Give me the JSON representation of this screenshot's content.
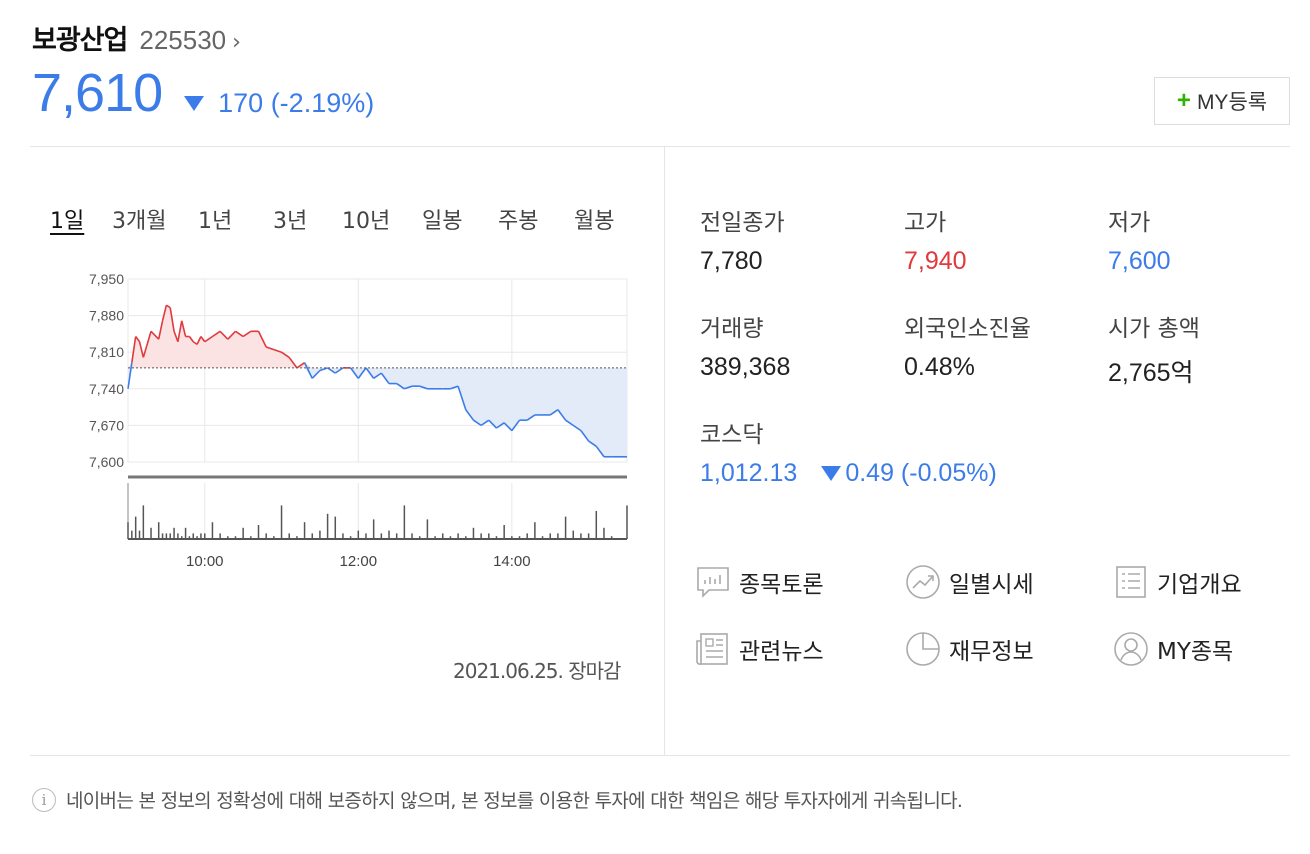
{
  "stock": {
    "name": "보광산업",
    "code": "225530",
    "price": "7,610",
    "change": "170 (-2.19%)",
    "my_button_label": "MY등록"
  },
  "tabs": [
    "1일",
    "3개월",
    "1년",
    "3년",
    "10년",
    "일봉",
    "주봉",
    "월봉"
  ],
  "close_label": "2021.06.25. 장마감",
  "stats": {
    "prev_close": {
      "label": "전일종가",
      "value": "7,780"
    },
    "high": {
      "label": "고가",
      "value": "7,940"
    },
    "low": {
      "label": "저가",
      "value": "7,600"
    },
    "volume": {
      "label": "거래량",
      "value": "389,368"
    },
    "foreign_ratio": {
      "label": "외국인소진율",
      "value": "0.48%"
    },
    "market_cap": {
      "label": "시가 총액",
      "value": "2,765억"
    },
    "kosdaq": {
      "label": "코스닥",
      "value": "1,012.13",
      "change": "0.49 (-0.05%)"
    }
  },
  "links": [
    {
      "label": "종목토론",
      "icon": "discussion-icon"
    },
    {
      "label": "일별시세",
      "icon": "trend-icon"
    },
    {
      "label": "기업개요",
      "icon": "list-icon"
    },
    {
      "label": "관련뉴스",
      "icon": "news-icon"
    },
    {
      "label": "재무정보",
      "icon": "pie-icon"
    },
    {
      "label": "MY종목",
      "icon": "user-icon"
    }
  ],
  "notice": "네이버는 본 정보의 정확성에 대해 보증하지 않으며, 본 정보를 이용한 투자에 대한 책임은 해당 투자자에게 귀속됩니다.",
  "colors": {
    "up": "#e0393e",
    "down": "#3b7ce9",
    "up_fill": "#fbe3e3",
    "down_fill": "#e3ebf8"
  },
  "chart_data": {
    "type": "line",
    "reference": 7780,
    "ylim": [
      7600,
      7950
    ],
    "yticks": [
      "7,950",
      "7,880",
      "7,810",
      "7,740",
      "7,670",
      "7,600"
    ],
    "ytick_values": [
      7950,
      7880,
      7810,
      7740,
      7670,
      7600
    ],
    "xlim": [
      9.0,
      15.5
    ],
    "xticks": [
      "10:00",
      "12:00",
      "14:00"
    ],
    "xtick_values": [
      10,
      12,
      14
    ],
    "x": [
      9.0,
      9.05,
      9.1,
      9.15,
      9.2,
      9.3,
      9.4,
      9.45,
      9.5,
      9.55,
      9.6,
      9.65,
      9.7,
      9.75,
      9.8,
      9.85,
      9.9,
      9.95,
      10.0,
      10.1,
      10.2,
      10.3,
      10.4,
      10.5,
      10.6,
      10.7,
      10.8,
      10.9,
      11.0,
      11.1,
      11.2,
      11.3,
      11.4,
      11.5,
      11.6,
      11.7,
      11.8,
      11.9,
      12.0,
      12.1,
      12.2,
      12.3,
      12.4,
      12.5,
      12.6,
      12.7,
      12.8,
      12.9,
      13.0,
      13.1,
      13.2,
      13.3,
      13.4,
      13.5,
      13.6,
      13.7,
      13.8,
      13.9,
      14.0,
      14.1,
      14.2,
      14.3,
      14.4,
      14.5,
      14.6,
      14.7,
      14.8,
      14.9,
      15.0,
      15.1,
      15.2,
      15.3,
      15.5
    ],
    "y": [
      7740,
      7790,
      7840,
      7830,
      7800,
      7850,
      7835,
      7870,
      7900,
      7895,
      7850,
      7830,
      7870,
      7840,
      7840,
      7830,
      7825,
      7840,
      7830,
      7840,
      7850,
      7835,
      7850,
      7840,
      7850,
      7850,
      7820,
      7815,
      7810,
      7800,
      7780,
      7790,
      7760,
      7775,
      7780,
      7770,
      7780,
      7780,
      7760,
      7780,
      7760,
      7770,
      7750,
      7750,
      7740,
      7745,
      7745,
      7740,
      7740,
      7740,
      7740,
      7745,
      7700,
      7680,
      7670,
      7680,
      7665,
      7675,
      7660,
      7680,
      7680,
      7690,
      7690,
      7690,
      7700,
      7680,
      7670,
      7660,
      7640,
      7630,
      7610,
      7610,
      7610
    ],
    "volume": [
      0.3,
      0.15,
      0.4,
      0.15,
      0.6,
      0.2,
      0.3,
      0.1,
      0.1,
      0.1,
      0.2,
      0.1,
      0.05,
      0.2,
      0.05,
      0.1,
      0.05,
      0.1,
      0.1,
      0.3,
      0.1,
      0.05,
      0.05,
      0.2,
      0.05,
      0.25,
      0.1,
      0.05,
      0.6,
      0.1,
      0.05,
      0.3,
      0.1,
      0.15,
      0.45,
      0.4,
      0.1,
      0.05,
      0.15,
      0.1,
      0.35,
      0.1,
      0.15,
      0.1,
      0.6,
      0.1,
      0.05,
      0.35,
      0.05,
      0.1,
      0.05,
      0.1,
      0.05,
      0.2,
      0.1,
      0.1,
      0.05,
      0.25,
      0.05,
      0.05,
      0.1,
      0.3,
      0.05,
      0.1,
      0.1,
      0.4,
      0.15,
      0.1,
      0.1,
      0.5,
      0.2,
      0.05,
      0.6
    ]
  }
}
